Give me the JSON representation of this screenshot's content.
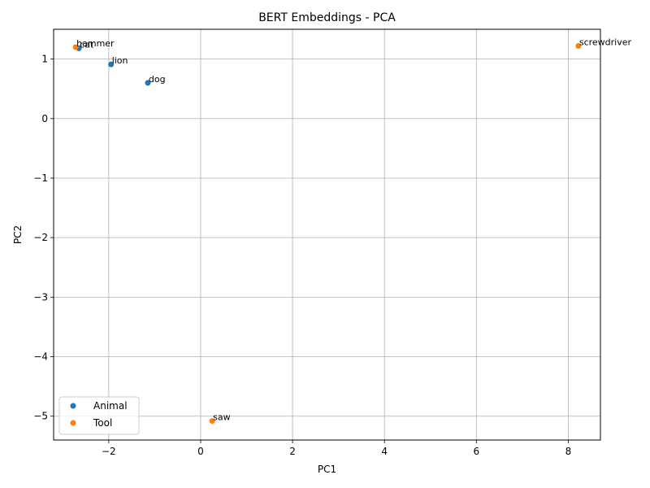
{
  "chart_data": {
    "type": "scatter",
    "title": "BERT Embeddings - PCA",
    "xlabel": "PC1",
    "ylabel": "PC2",
    "xlim": [
      -3.2,
      8.7
    ],
    "ylim": [
      -5.4,
      1.5
    ],
    "xticks": [
      -2,
      0,
      2,
      4,
      6,
      8
    ],
    "yticks": [
      -5,
      -4,
      -3,
      -2,
      -1,
      0,
      1
    ],
    "xtick_labels": [
      "−2",
      "0",
      "2",
      "4",
      "6",
      "8"
    ],
    "ytick_labels": [
      "−5",
      "−4",
      "−3",
      "−2",
      "−1",
      "0",
      "1"
    ],
    "grid": true,
    "legend_position": "lower-left",
    "series": [
      {
        "name": "Animal",
        "color": "#1f77b4",
        "points": [
          {
            "label": "cat",
            "x": -2.65,
            "y": 1.18
          },
          {
            "label": "lion",
            "x": -1.95,
            "y": 0.91
          },
          {
            "label": "dog",
            "x": -1.15,
            "y": 0.6
          }
        ]
      },
      {
        "name": "Tool",
        "color": "#ff7f0e",
        "points": [
          {
            "label": "hammer",
            "x": -2.72,
            "y": 1.2
          },
          {
            "label": "screwdriver",
            "x": 8.22,
            "y": 1.22
          },
          {
            "label": "saw",
            "x": 0.25,
            "y": -5.08
          }
        ]
      }
    ]
  }
}
